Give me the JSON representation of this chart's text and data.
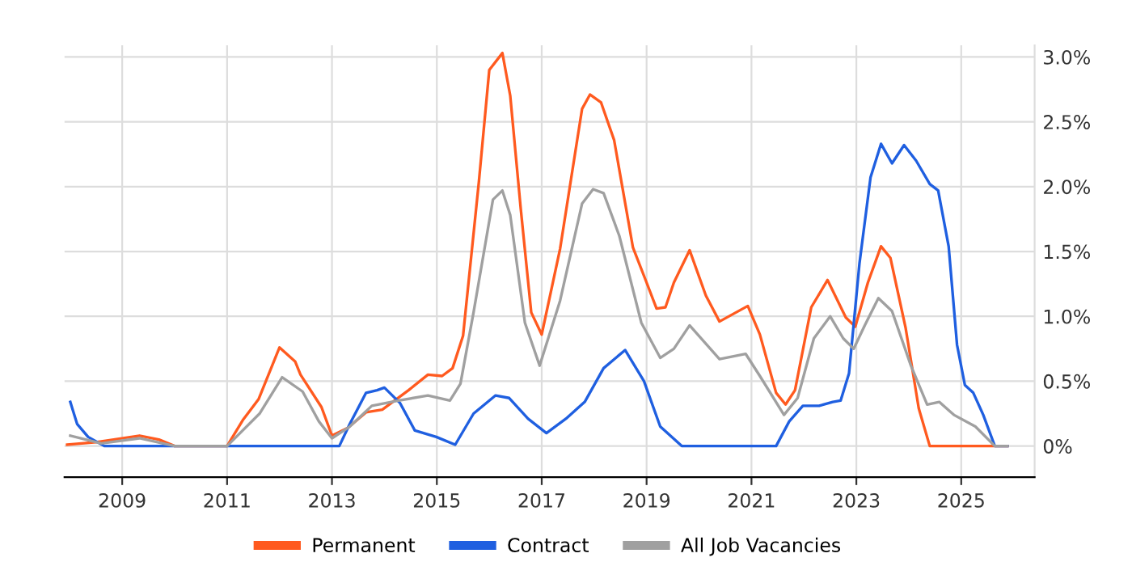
{
  "chart_data": {
    "type": "line",
    "xlim": [
      2007.9,
      2026.4
    ],
    "xticks": [
      2009,
      2011,
      2013,
      2015,
      2017,
      2019,
      2021,
      2023,
      2025
    ],
    "ylim": [
      -0.24,
      3.09
    ],
    "yticks": [
      {
        "value": 0,
        "label": "0%"
      },
      {
        "value": 0.5,
        "label": "0.5%"
      },
      {
        "value": 1,
        "label": "1.0%"
      },
      {
        "value": 1.5,
        "label": "1.5%"
      },
      {
        "value": 2,
        "label": "2.0%"
      },
      {
        "value": 2.5,
        "label": "2.5%"
      },
      {
        "value": 3,
        "label": "3.0%"
      }
    ],
    "grid": true,
    "legend": "bottom",
    "marker": "none",
    "line_style": "solid",
    "series": [
      {
        "name": "Permanent",
        "color": "#ff5a1f",
        "x": [
          2007.95,
          2008.5,
          2009.33,
          2009.7,
          2010.0,
          2011.0,
          2011.3,
          2011.6,
          2012.0,
          2012.3,
          2012.4,
          2012.8,
          2013.0,
          2013.3,
          2013.65,
          2013.96,
          2014.46,
          2014.83,
          2015.1,
          2015.3,
          2015.5,
          2015.8,
          2016.0,
          2016.25,
          2016.4,
          2016.6,
          2016.8,
          2017.0,
          2017.35,
          2017.77,
          2017.92,
          2018.13,
          2018.38,
          2018.74,
          2019.0,
          2019.19,
          2019.36,
          2019.52,
          2019.82,
          2020.13,
          2020.39,
          2020.93,
          2021.16,
          2021.47,
          2021.65,
          2021.83,
          2022.14,
          2022.45,
          2022.8,
          2022.98,
          2023.22,
          2023.47,
          2023.65,
          2023.94,
          2024.19,
          2024.4,
          2025.88
        ],
        "values": [
          0.01,
          0.03,
          0.08,
          0.05,
          0.0,
          0.0,
          0.2,
          0.36,
          0.76,
          0.65,
          0.55,
          0.3,
          0.08,
          0.14,
          0.26,
          0.28,
          0.43,
          0.55,
          0.54,
          0.6,
          0.85,
          2.03,
          2.9,
          3.03,
          2.7,
          1.83,
          1.03,
          0.86,
          1.52,
          2.6,
          2.71,
          2.65,
          2.36,
          1.53,
          1.26,
          1.06,
          1.07,
          1.26,
          1.51,
          1.16,
          0.96,
          1.08,
          0.86,
          0.41,
          0.32,
          0.43,
          1.07,
          1.28,
          0.99,
          0.92,
          1.26,
          1.54,
          1.45,
          0.91,
          0.29,
          0.0,
          0.0
        ]
      },
      {
        "name": "Contract",
        "color": "#1f5fe0",
        "x": [
          2008.01,
          2008.14,
          2008.35,
          2008.66,
          2013.14,
          2013.34,
          2013.65,
          2013.86,
          2014.0,
          2014.3,
          2014.58,
          2014.99,
          2015.35,
          2015.7,
          2016.12,
          2016.38,
          2016.74,
          2017.09,
          2017.46,
          2017.82,
          2018.18,
          2018.59,
          2018.95,
          2019.26,
          2019.67,
          2021.47,
          2021.72,
          2021.98,
          2022.29,
          2022.55,
          2022.7,
          2022.86,
          2023.06,
          2023.27,
          2023.47,
          2023.68,
          2023.91,
          2024.14,
          2024.4,
          2024.56,
          2024.76,
          2024.92,
          2025.07,
          2025.23,
          2025.42,
          2025.64,
          2025.88
        ],
        "values": [
          0.34,
          0.17,
          0.07,
          0.0,
          0.0,
          0.17,
          0.41,
          0.43,
          0.45,
          0.33,
          0.12,
          0.07,
          0.01,
          0.25,
          0.39,
          0.37,
          0.21,
          0.1,
          0.21,
          0.34,
          0.6,
          0.74,
          0.5,
          0.15,
          0.0,
          0.0,
          0.19,
          0.31,
          0.31,
          0.34,
          0.35,
          0.56,
          1.41,
          2.07,
          2.33,
          2.18,
          2.32,
          2.2,
          2.02,
          1.97,
          1.54,
          0.78,
          0.47,
          0.41,
          0.24,
          0.0,
          0.0
        ]
      },
      {
        "name": "All Job Vacancies",
        "color": "#a0a0a0",
        "x": [
          2008.01,
          2008.6,
          2009.33,
          2010.0,
          2011.0,
          2011.62,
          2012.05,
          2012.44,
          2012.75,
          2013.0,
          2013.34,
          2013.76,
          2014.27,
          2014.83,
          2015.25,
          2015.45,
          2015.7,
          2016.07,
          2016.25,
          2016.4,
          2016.68,
          2016.96,
          2017.35,
          2017.77,
          2017.98,
          2018.18,
          2018.48,
          2018.9,
          2019.26,
          2019.52,
          2019.82,
          2020.39,
          2020.89,
          2021.16,
          2021.62,
          2021.88,
          2022.19,
          2022.5,
          2022.75,
          2022.95,
          2023.16,
          2023.42,
          2023.68,
          2024.04,
          2024.35,
          2024.58,
          2024.86,
          2025.27,
          2025.64,
          2025.88
        ],
        "values": [
          0.08,
          0.02,
          0.06,
          0.0,
          0.0,
          0.25,
          0.53,
          0.42,
          0.19,
          0.06,
          0.15,
          0.31,
          0.35,
          0.39,
          0.35,
          0.48,
          1.03,
          1.9,
          1.97,
          1.78,
          0.95,
          0.62,
          1.12,
          1.87,
          1.98,
          1.95,
          1.62,
          0.95,
          0.68,
          0.75,
          0.93,
          0.67,
          0.71,
          0.54,
          0.24,
          0.37,
          0.83,
          1.0,
          0.83,
          0.75,
          0.93,
          1.14,
          1.04,
          0.62,
          0.32,
          0.34,
          0.24,
          0.15,
          0.0,
          0.0
        ]
      }
    ]
  }
}
